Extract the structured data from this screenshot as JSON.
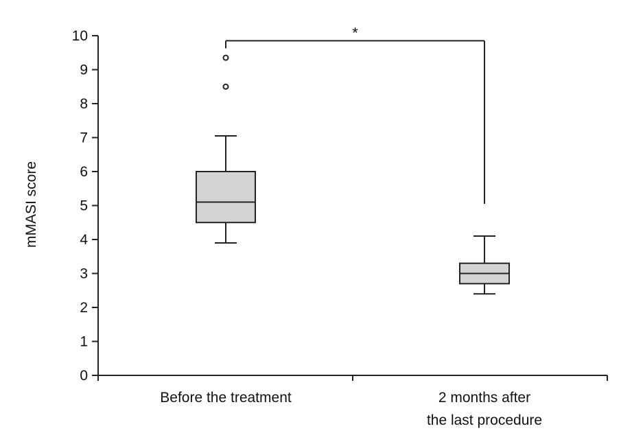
{
  "chart_data": {
    "type": "boxplot",
    "ylabel": "mMASI score",
    "ylim": [
      0,
      10
    ],
    "yticks": [
      0,
      1,
      2,
      3,
      4,
      5,
      6,
      7,
      8,
      9,
      10
    ],
    "categories": [
      [
        "Before the treatment"
      ],
      [
        "2 months after",
        "the last procedure"
      ]
    ],
    "boxes": [
      {
        "whisker_low": 3.9,
        "q1": 4.5,
        "median": 5.1,
        "q3": 6.0,
        "whisker_high": 7.05,
        "outliers": [
          8.5,
          9.35
        ]
      },
      {
        "whisker_low": 2.4,
        "q1": 2.7,
        "median": 3.0,
        "q3": 3.3,
        "whisker_high": 4.1,
        "outliers": []
      }
    ],
    "significance": {
      "label": "*",
      "from": 0,
      "to": 1,
      "level": 9.85,
      "right_drop_to": 5.05
    },
    "grid": false
  }
}
